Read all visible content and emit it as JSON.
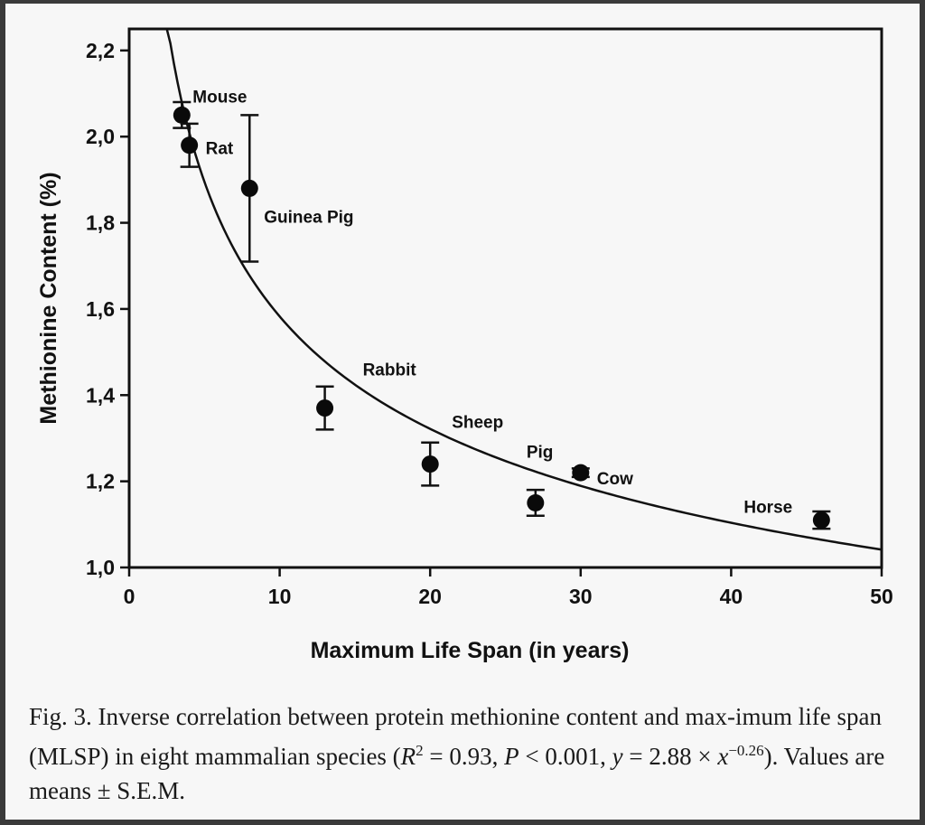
{
  "chart_data": {
    "type": "scatter",
    "xlabel": "Maximum Life Span (in years)",
    "ylabel": "Methionine Content (%)",
    "xlim": [
      0,
      50
    ],
    "ylim": [
      1.0,
      2.25
    ],
    "x_ticks": [
      0,
      10,
      20,
      30,
      40,
      50
    ],
    "x_tick_labels": [
      "0",
      "10",
      "20",
      "30",
      "40",
      "50"
    ],
    "y_ticks": [
      1.0,
      1.2,
      1.4,
      1.6,
      1.8,
      2.0,
      2.2
    ],
    "y_tick_labels": [
      "1,0",
      "1,2",
      "1,4",
      "1,6",
      "1,8",
      "2,0",
      "2,2"
    ],
    "grid": false,
    "points": [
      {
        "label": "Mouse",
        "x": 3.5,
        "y": 2.05,
        "sem": 0.03
      },
      {
        "label": "Rat",
        "x": 4,
        "y": 1.98,
        "sem": 0.05
      },
      {
        "label": "Guinea Pig",
        "x": 8,
        "y": 1.88,
        "sem": 0.17
      },
      {
        "label": "Rabbit",
        "x": 13,
        "y": 1.37,
        "sem": 0.05
      },
      {
        "label": "Sheep",
        "x": 20,
        "y": 1.24,
        "sem": 0.05
      },
      {
        "label": "Pig",
        "x": 27,
        "y": 1.15,
        "sem": 0.03
      },
      {
        "label": "Cow",
        "x": 30,
        "y": 1.22,
        "sem": 0.01
      },
      {
        "label": "Horse",
        "x": 46,
        "y": 1.11,
        "sem": 0.02
      }
    ],
    "fit": {
      "type": "power",
      "a": 2.88,
      "b": -0.26,
      "x_start": 2.5,
      "x_end": 50
    }
  },
  "caption": {
    "fig_label": "Fig. 3.",
    "text_1": "Inverse correlation between protein methionine content and max-imum life span (MLSP) in eight mammalian species (",
    "r": "R",
    "r_exp": "2",
    "text_2": " = 0.93, ",
    "p": "P",
    "text_3": " < 0.001, ",
    "y": "y",
    "text_4": " = 2.88 × ",
    "x": "x",
    "x_exp": "−0.26",
    "text_5": "). Values are means ± S.E.M."
  }
}
